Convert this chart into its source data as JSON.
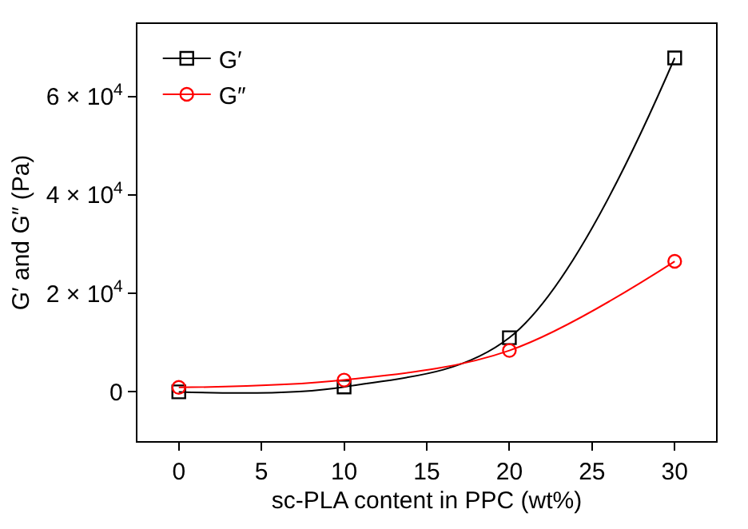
{
  "chart_data": {
    "type": "line",
    "xlabel": "sc-PLA content in PPC (wt%)",
    "ylabel": "G′ and G″ (Pa)",
    "x": [
      0,
      10,
      20,
      30
    ],
    "series": [
      {
        "name": "G′",
        "color": "#000000",
        "marker": "square",
        "values": [
          0,
          1000,
          11000,
          67800
        ]
      },
      {
        "name": "G″",
        "color": "#ff0000",
        "marker": "circle",
        "values": [
          900,
          2400,
          8400,
          26500
        ]
      }
    ],
    "xlim": [
      -2.5,
      32.5
    ],
    "xticks": [
      0,
      5,
      10,
      15,
      20,
      25,
      30
    ],
    "ylim": [
      -10000,
      74700
    ],
    "yticks": [
      0,
      {
        "value": 20000,
        "label": "2 × 10$^{4}$"
      },
      {
        "value": 40000,
        "label": "4 × 10$^{4}$"
      },
      {
        "value": 60000,
        "label": "6 × 10$^{4}$"
      }
    ],
    "legend": "top left",
    "line_style": "solid"
  }
}
